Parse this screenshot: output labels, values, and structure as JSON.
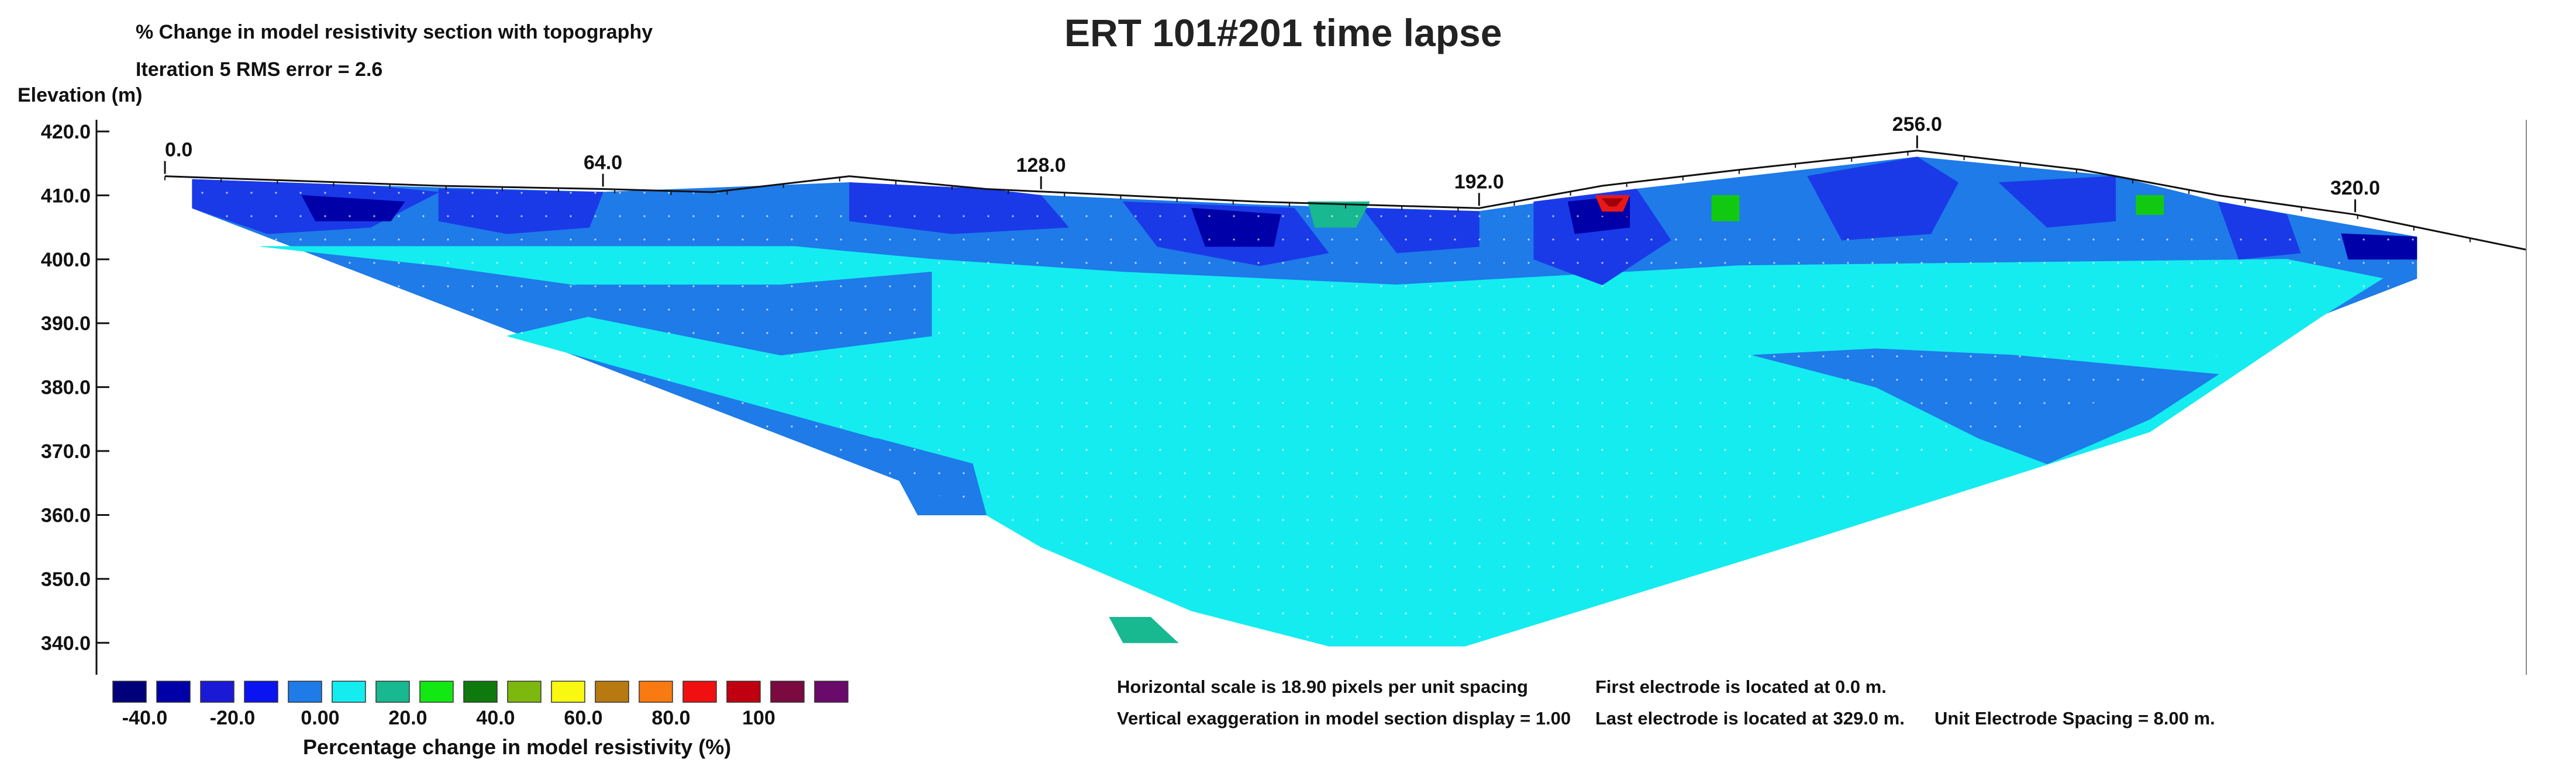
{
  "chart_data": {
    "type": "heatmap",
    "title": "ERT 101#201 time lapse",
    "subtitle": "% Change in model resistivity section with topography",
    "iteration_label": "Iteration 5 RMS error = 2.6",
    "ylabel": "Elevation (m)",
    "ylim": [
      335,
      420
    ],
    "yticks": [
      420,
      410,
      400,
      390,
      380,
      370,
      360,
      350,
      340
    ],
    "ytick_labels": [
      "420.0",
      "410.0",
      "400.0",
      "390.0",
      "380.0",
      "370.0",
      "360.0",
      "350.0",
      "340.0"
    ],
    "xlim": [
      -10,
      345
    ],
    "xtick_labels": [
      {
        "x": 0,
        "label": "0.0"
      },
      {
        "x": 64,
        "label": "64.0"
      },
      {
        "x": 128,
        "label": "128.0"
      },
      {
        "x": 192,
        "label": "192.0"
      },
      {
        "x": 256,
        "label": "256.0"
      },
      {
        "x": 320,
        "label": "320.0"
      }
    ],
    "topography": [
      {
        "x": 0,
        "elev": 413.0
      },
      {
        "x": 40,
        "elev": 411.5
      },
      {
        "x": 64,
        "elev": 411.0
      },
      {
        "x": 80,
        "elev": 410.5
      },
      {
        "x": 100,
        "elev": 413.0
      },
      {
        "x": 120,
        "elev": 411.0
      },
      {
        "x": 160,
        "elev": 409.0
      },
      {
        "x": 192,
        "elev": 408.0
      },
      {
        "x": 210,
        "elev": 411.5
      },
      {
        "x": 230,
        "elev": 414.0
      },
      {
        "x": 256,
        "elev": 417.0
      },
      {
        "x": 280,
        "elev": 414.0
      },
      {
        "x": 300,
        "elev": 410.0
      },
      {
        "x": 320,
        "elev": 407.0
      },
      {
        "x": 345,
        "elev": 401.5
      }
    ],
    "section_outline": [
      {
        "x": 4,
        "elev": 412.5
      },
      {
        "x": 329,
        "elev": 403.5
      },
      {
        "x": 329,
        "elev": 397.0
      },
      {
        "x": 190,
        "elev": 339.5
      },
      {
        "x": 170,
        "elev": 339.5
      },
      {
        "x": 4,
        "elev": 408.0
      }
    ],
    "regions": [
      {
        "color": "#1e7be8",
        "points": [
          [
            4,
            412.5
          ],
          [
            30,
            411.5
          ],
          [
            64,
            410.5
          ],
          [
            100,
            412
          ],
          [
            128,
            410
          ],
          [
            160,
            408.5
          ],
          [
            192,
            407.5
          ],
          [
            215,
            411
          ],
          [
            256,
            416
          ],
          [
            285,
            413
          ],
          [
            300,
            409
          ],
          [
            329,
            403.5
          ],
          [
            329,
            397
          ],
          [
            190,
            339.5
          ],
          [
            170,
            339.5
          ],
          [
            4,
            408
          ]
        ]
      },
      {
        "color": "#14ecf0",
        "points": [
          [
            14,
            402
          ],
          [
            40,
            399
          ],
          [
            60,
            396
          ],
          [
            62,
            391
          ],
          [
            50,
            388
          ],
          [
            104,
            372
          ],
          [
            120,
            360
          ],
          [
            128,
            355
          ],
          [
            150,
            345
          ],
          [
            170,
            339.5
          ],
          [
            190,
            339.5
          ],
          [
            240,
            356
          ],
          [
            290,
            373
          ],
          [
            315,
            391
          ],
          [
            324,
            397
          ],
          [
            310,
            400
          ],
          [
            230,
            399
          ],
          [
            180,
            396
          ],
          [
            140,
            398
          ],
          [
            112,
            400
          ],
          [
            92,
            402
          ]
        ]
      },
      {
        "color": "#1e7be8",
        "points": [
          [
            60,
            396
          ],
          [
            90,
            396
          ],
          [
            112,
            398
          ],
          [
            112,
            388
          ],
          [
            90,
            385
          ],
          [
            62,
            391
          ]
        ]
      },
      {
        "color": "#1e7be8",
        "points": [
          [
            232,
            385
          ],
          [
            250,
            380
          ],
          [
            265,
            372
          ],
          [
            275,
            368
          ],
          [
            290,
            375
          ],
          [
            300,
            382
          ],
          [
            270,
            385
          ],
          [
            250,
            386
          ]
        ]
      },
      {
        "color": "#1e7be8",
        "points": [
          [
            104,
            372
          ],
          [
            118,
            368
          ],
          [
            120,
            360
          ],
          [
            110,
            360
          ]
        ]
      },
      {
        "color": "#1a3ae8",
        "points": [
          [
            4,
            412.5
          ],
          [
            30,
            411.5
          ],
          [
            40,
            410.5
          ],
          [
            30,
            405
          ],
          [
            15,
            404
          ],
          [
            4,
            408
          ]
        ]
      },
      {
        "color": "#1a3ae8",
        "points": [
          [
            40,
            411
          ],
          [
            64,
            410.5
          ],
          [
            62,
            405
          ],
          [
            50,
            404
          ],
          [
            40,
            406
          ]
        ]
      },
      {
        "color": "#1a3ae8",
        "points": [
          [
            100,
            412
          ],
          [
            120,
            411
          ],
          [
            128,
            410
          ],
          [
            132,
            405
          ],
          [
            115,
            404
          ],
          [
            100,
            406
          ]
        ]
      },
      {
        "color": "#1a3ae8",
        "points": [
          [
            140,
            409
          ],
          [
            165,
            408
          ],
          [
            170,
            401
          ],
          [
            160,
            399
          ],
          [
            145,
            402
          ]
        ]
      },
      {
        "color": "#1a3ae8",
        "points": [
          [
            175,
            408
          ],
          [
            192,
            407.5
          ],
          [
            192,
            402
          ],
          [
            180,
            401
          ]
        ]
      },
      {
        "color": "#1a3ae8",
        "points": [
          [
            200,
            409
          ],
          [
            215,
            411
          ],
          [
            220,
            403
          ],
          [
            210,
            396
          ],
          [
            200,
            400
          ]
        ]
      },
      {
        "color": "#1a3ae8",
        "points": [
          [
            240,
            413
          ],
          [
            256,
            416
          ],
          [
            262,
            412
          ],
          [
            258,
            404
          ],
          [
            245,
            403
          ]
        ]
      },
      {
        "color": "#1a3ae8",
        "points": [
          [
            268,
            412
          ],
          [
            285,
            413
          ],
          [
            285,
            406
          ],
          [
            275,
            405
          ]
        ]
      },
      {
        "color": "#1a3ae8",
        "points": [
          [
            300,
            409
          ],
          [
            310,
            407
          ],
          [
            312,
            401
          ],
          [
            303,
            400
          ]
        ]
      },
      {
        "color": "#0000a8",
        "points": [
          [
            20,
            410
          ],
          [
            35,
            409
          ],
          [
            33,
            406
          ],
          [
            22,
            406
          ]
        ]
      },
      {
        "color": "#0000a8",
        "points": [
          [
            150,
            408
          ],
          [
            163,
            407
          ],
          [
            162,
            402
          ],
          [
            152,
            402
          ]
        ]
      },
      {
        "color": "#0000a8",
        "points": [
          [
            205,
            409
          ],
          [
            214,
            410
          ],
          [
            214,
            405
          ],
          [
            206,
            404
          ]
        ]
      },
      {
        "color": "#0000a8",
        "points": [
          [
            318,
            404
          ],
          [
            329,
            403.5
          ],
          [
            329,
            400
          ],
          [
            319,
            400
          ]
        ]
      },
      {
        "color": "#18b890",
        "points": [
          [
            167,
            409
          ],
          [
            176,
            409
          ],
          [
            174,
            405
          ],
          [
            168,
            405
          ]
        ]
      },
      {
        "color": "#18b890",
        "points": [
          [
            138,
            344
          ],
          [
            144,
            344
          ],
          [
            148,
            340
          ],
          [
            140,
            340
          ]
        ]
      },
      {
        "color": "#12c912",
        "points": [
          [
            226,
            410
          ],
          [
            230,
            410
          ],
          [
            230,
            406
          ],
          [
            226,
            406
          ]
        ]
      },
      {
        "color": "#12c912",
        "points": [
          [
            288,
            410
          ],
          [
            292,
            410
          ],
          [
            292,
            407
          ],
          [
            288,
            407
          ]
        ]
      },
      {
        "color": "#e81818",
        "points": [
          [
            209,
            410
          ],
          [
            214,
            410
          ],
          [
            213,
            407.5
          ],
          [
            210,
            407.5
          ]
        ]
      },
      {
        "color": "#a0000a",
        "points": [
          [
            210,
            409.5
          ],
          [
            213,
            409.5
          ],
          [
            212,
            408.3
          ],
          [
            211,
            408.3
          ]
        ]
      }
    ],
    "colorscale": [
      {
        "color": "#00007a"
      },
      {
        "color": "#0000a8"
      },
      {
        "color": "#1a1ad6"
      },
      {
        "color": "#0a14f0"
      },
      {
        "color": "#1e7be8"
      },
      {
        "color": "#14ecf0"
      },
      {
        "color": "#18b890"
      },
      {
        "color": "#12e812"
      },
      {
        "color": "#0e7a0e"
      },
      {
        "color": "#7cb80e"
      },
      {
        "color": "#f8f810"
      },
      {
        "color": "#b87a10"
      },
      {
        "color": "#f87a10"
      },
      {
        "color": "#f01010"
      },
      {
        "color": "#c00010"
      },
      {
        "color": "#7a0a40"
      },
      {
        "color": "#6a0a6a"
      }
    ],
    "colorbar_labels": [
      "-40.0",
      "-20.0",
      "0.00",
      "20.0",
      "40.0",
      "60.0",
      "80.0",
      "100"
    ],
    "colorbar_title": "Percentage change in model resistivity (%)"
  },
  "notes": {
    "hscale": "Horizontal scale is 18.90 pixels per unit spacing",
    "vexag": "Vertical exaggeration in model section display = 1.00",
    "first_electrode": "First electrode is located at 0.0  m.",
    "last_electrode": "Last electrode is located at 329.0 m.",
    "spacing": "Unit Electrode Spacing = 8.00 m."
  }
}
